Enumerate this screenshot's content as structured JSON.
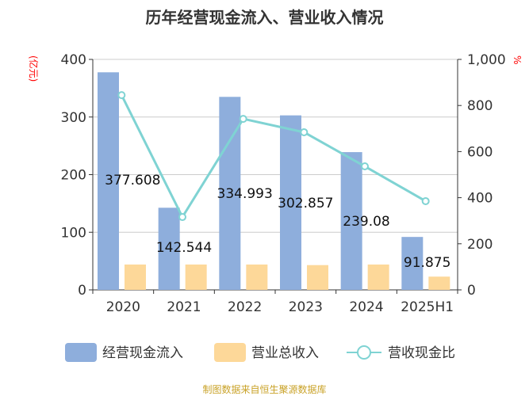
{
  "chart_data": {
    "type": "bar",
    "title": "历年经营现金流入、营业收入情况",
    "categories": [
      "2020",
      "2021",
      "2022",
      "2023",
      "2024",
      "2025H1"
    ],
    "series": [
      {
        "name": "经营现金流入",
        "type": "bar",
        "axis": "left",
        "color": "#8eaedc",
        "values": [
          377.608,
          142.544,
          334.993,
          302.857,
          239.08,
          91.875
        ],
        "labels": [
          "377.608",
          "142.544",
          "334.993",
          "302.857",
          "239.08",
          "91.875"
        ]
      },
      {
        "name": "营业总收入",
        "type": "bar",
        "axis": "left",
        "color": "#fdd899",
        "values": [
          44,
          44,
          44,
          43,
          44,
          23
        ]
      },
      {
        "name": "营收现金比",
        "type": "line",
        "axis": "right",
        "color": "#7fd3d3",
        "values": [
          845,
          316,
          742,
          684,
          536,
          385
        ]
      }
    ],
    "ylabel_left": "(亿元)",
    "ylabel_right": "%",
    "ylim_left": [
      0,
      400
    ],
    "ylim_right": [
      0,
      1000
    ],
    "yticks_left": [
      "0",
      "100",
      "200",
      "300",
      "400"
    ],
    "yticks_right": [
      "0",
      "200",
      "400",
      "600",
      "800",
      "1,000"
    ],
    "grid": true,
    "legend": "bottom"
  },
  "footer": "制图数据来自恒生聚源数据库"
}
